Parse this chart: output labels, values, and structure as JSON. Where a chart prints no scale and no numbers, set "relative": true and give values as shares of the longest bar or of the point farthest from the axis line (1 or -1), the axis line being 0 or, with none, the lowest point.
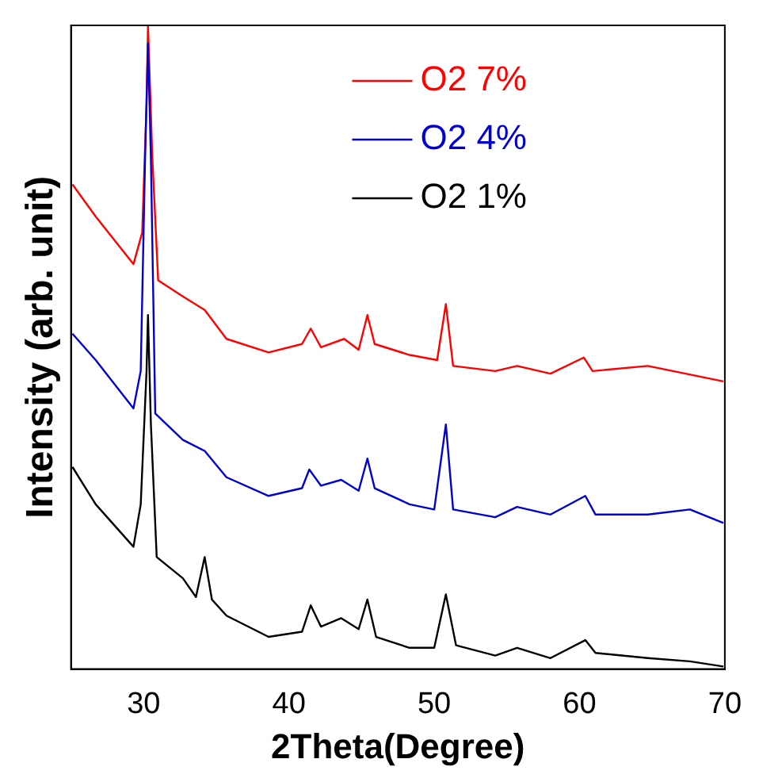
{
  "chart_data": {
    "type": "line",
    "xlabel": "2Theta(Degree)",
    "ylabel": "Intensity (arb. unit)",
    "relative": true,
    "xlim": [
      25,
      70
    ],
    "xticks": [
      30,
      40,
      50,
      60,
      70
    ],
    "grid": false,
    "legend": "top right",
    "marker": "none",
    "line_style": "solid",
    "series": [
      {
        "name": "O2 7%",
        "color": "#ff0000",
        "x": [
          25.1,
          26.7,
          29.3,
          29.9,
          30.2,
          30.3,
          30.6,
          31.0,
          32.7,
          34.2,
          35.7,
          38.6,
          40.9,
          41.5,
          42.2,
          43.8,
          44.8,
          45.4,
          45.9,
          48.3,
          50.2,
          50.8,
          51.3,
          54.2,
          55.7,
          58.0,
          60.3,
          60.9,
          64.7,
          67.3,
          69.9
        ],
        "values": [
          0.753,
          0.703,
          0.629,
          0.678,
          0.877,
          1.0,
          0.794,
          0.604,
          0.579,
          0.558,
          0.513,
          0.492,
          0.505,
          0.529,
          0.5,
          0.513,
          0.496,
          0.55,
          0.505,
          0.488,
          0.48,
          0.567,
          0.471,
          0.463,
          0.471,
          0.459,
          0.484,
          0.463,
          0.471,
          0.459,
          0.447
        ]
      },
      {
        "name": "O2 4%",
        "color": "#0000d0",
        "x": [
          25.1,
          26.7,
          29.3,
          29.8,
          30.1,
          30.3,
          30.5,
          30.8,
          32.7,
          34.2,
          35.7,
          38.6,
          40.9,
          41.4,
          42.2,
          43.6,
          44.8,
          45.4,
          45.9,
          48.3,
          50.0,
          50.8,
          51.3,
          54.2,
          55.7,
          58.0,
          60.4,
          61.1,
          64.7,
          67.6,
          69.9
        ],
        "values": [
          0.521,
          0.48,
          0.405,
          0.463,
          0.794,
          0.972,
          0.794,
          0.397,
          0.356,
          0.339,
          0.298,
          0.269,
          0.281,
          0.31,
          0.285,
          0.294,
          0.277,
          0.327,
          0.281,
          0.256,
          0.248,
          0.38,
          0.248,
          0.236,
          0.252,
          0.24,
          0.269,
          0.24,
          0.24,
          0.248,
          0.227
        ]
      },
      {
        "name": "O2 1%",
        "color": "#000000",
        "x": [
          25.1,
          26.7,
          29.3,
          29.8,
          30.2,
          30.3,
          30.5,
          30.9,
          32.7,
          33.6,
          34.2,
          34.7,
          35.7,
          38.6,
          40.9,
          41.5,
          42.2,
          43.6,
          44.8,
          45.4,
          46.0,
          48.3,
          50.0,
          50.8,
          51.5,
          54.2,
          55.7,
          58.0,
          60.4,
          61.1,
          64.7,
          67.6,
          69.9
        ],
        "values": [
          0.314,
          0.256,
          0.19,
          0.256,
          0.463,
          0.55,
          0.38,
          0.174,
          0.141,
          0.112,
          0.174,
          0.108,
          0.083,
          0.05,
          0.058,
          0.099,
          0.066,
          0.079,
          0.062,
          0.108,
          0.05,
          0.033,
          0.033,
          0.116,
          0.037,
          0.021,
          0.033,
          0.017,
          0.045,
          0.025,
          0.017,
          0.012,
          0.004
        ]
      }
    ]
  }
}
